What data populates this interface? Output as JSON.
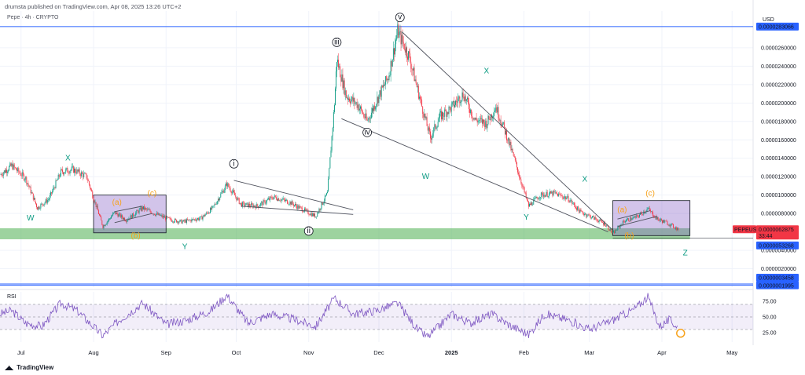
{
  "header": {
    "published": "drumsta published on TradingView.com, Apr 08, 2025 13:26 UTC+2",
    "symbol": "Pepe · 4h · CRYPTO"
  },
  "footer": {
    "brand": "TradingView",
    "logo": "tradingview-logo-icon"
  },
  "colors": {
    "candle_up": "#089981",
    "candle_down": "#f23645",
    "support_zone": "#4caf50",
    "box_fill": "#7e57c2",
    "hline": "#2962ff",
    "rsi_line": "#7e57c2",
    "wave_green": "#089981",
    "wave_orange": "#f7a21b",
    "trendline": "#50535e",
    "price_label": "#2962ff",
    "current_price_label": "#f23645"
  },
  "chart_data": [
    {
      "type": "candlestick",
      "title": "Pepe · 4h · CRYPTO",
      "currency": "USD",
      "y_axis_scale": "linear",
      "ylim": [
        0.0,
        3e-05
      ],
      "y_ticks": [
        {
          "value": 2.6e-05,
          "label": "0.0000260000"
        },
        {
          "value": 2.4e-05,
          "label": "0.0000240000"
        },
        {
          "value": 2.2e-05,
          "label": "0.0000220000"
        },
        {
          "value": 2e-05,
          "label": "0.0000200000"
        },
        {
          "value": 1.8e-05,
          "label": "0.0000180000"
        },
        {
          "value": 1.6e-05,
          "label": "0.0000160000"
        },
        {
          "value": 1.4e-05,
          "label": "0.0000140000"
        },
        {
          "value": 1.2e-05,
          "label": "0.0000120000"
        },
        {
          "value": 1e-05,
          "label": "0.0000100000"
        },
        {
          "value": 8e-06,
          "label": "0.0000080000"
        },
        {
          "value": 4e-06,
          "label": "0.0000040000"
        },
        {
          "value": 2e-06,
          "label": "0.0000020000"
        }
      ],
      "x_ticks": [
        "Jul",
        "Aug",
        "Sep",
        "Oct",
        "Nov",
        "Dec",
        "2025",
        "Feb",
        "Mar",
        "Apr",
        "May"
      ],
      "x_tick_dates": [
        "2024-07-01",
        "2024-08-01",
        "2024-09-01",
        "2024-10-01",
        "2024-11-01",
        "2024-12-01",
        "2025-01-01",
        "2025-02-01",
        "2025-03-01",
        "2025-04-01",
        "2025-05-01"
      ],
      "x_range": [
        "2024-06-22",
        "2025-05-10"
      ],
      "price_path": [
        {
          "date": "2024-06-22",
          "close": 1.22e-05
        },
        {
          "date": "2024-06-27",
          "close": 1.32e-05
        },
        {
          "date": "2024-07-03",
          "close": 1.18e-05
        },
        {
          "date": "2024-07-08",
          "close": 8.6e-06
        },
        {
          "date": "2024-07-13",
          "close": 9.6e-06
        },
        {
          "date": "2024-07-18",
          "close": 1.25e-05
        },
        {
          "date": "2024-07-23",
          "close": 1.28e-05
        },
        {
          "date": "2024-07-29",
          "close": 1.2e-05
        },
        {
          "date": "2024-08-05",
          "close": 6.6e-06
        },
        {
          "date": "2024-08-10",
          "close": 8.1e-06
        },
        {
          "date": "2024-08-15",
          "close": 7.3e-06
        },
        {
          "date": "2024-08-22",
          "close": 8.6e-06
        },
        {
          "date": "2024-08-27",
          "close": 8e-06
        },
        {
          "date": "2024-09-03",
          "close": 7.3e-06
        },
        {
          "date": "2024-09-08",
          "close": 7.1e-06
        },
        {
          "date": "2024-09-16",
          "close": 7.5e-06
        },
        {
          "date": "2024-09-21",
          "close": 8.6e-06
        },
        {
          "date": "2024-09-27",
          "close": 1.12e-05
        },
        {
          "date": "2024-10-03",
          "close": 9e-06
        },
        {
          "date": "2024-10-10",
          "close": 8.8e-06
        },
        {
          "date": "2024-10-17",
          "close": 9.8e-06
        },
        {
          "date": "2024-10-24",
          "close": 9.2e-06
        },
        {
          "date": "2024-10-31",
          "close": 8.2e-06
        },
        {
          "date": "2024-11-04",
          "close": 7.7e-06
        },
        {
          "date": "2024-11-09",
          "close": 1.02e-05
        },
        {
          "date": "2024-11-12",
          "close": 2e-05
        },
        {
          "date": "2024-11-13",
          "close": 2.48e-05
        },
        {
          "date": "2024-11-17",
          "close": 2.08e-05
        },
        {
          "date": "2024-11-22",
          "close": 1.98e-05
        },
        {
          "date": "2024-11-26",
          "close": 1.8e-05
        },
        {
          "date": "2024-12-01",
          "close": 2.08e-05
        },
        {
          "date": "2024-12-05",
          "close": 2.28e-05
        },
        {
          "date": "2024-12-09",
          "close": 2.78e-05
        },
        {
          "date": "2024-12-14",
          "close": 2.5e-05
        },
        {
          "date": "2024-12-19",
          "close": 2e-05
        },
        {
          "date": "2024-12-23",
          "close": 1.62e-05
        },
        {
          "date": "2024-12-27",
          "close": 1.85e-05
        },
        {
          "date": "2025-01-01",
          "close": 1.95e-05
        },
        {
          "date": "2025-01-06",
          "close": 2.1e-05
        },
        {
          "date": "2025-01-11",
          "close": 1.82e-05
        },
        {
          "date": "2025-01-16",
          "close": 1.78e-05
        },
        {
          "date": "2025-01-20",
          "close": 1.96e-05
        },
        {
          "date": "2025-01-25",
          "close": 1.62e-05
        },
        {
          "date": "2025-01-29",
          "close": 1.3e-05
        },
        {
          "date": "2025-02-03",
          "close": 8.8e-06
        },
        {
          "date": "2025-02-08",
          "close": 1e-05
        },
        {
          "date": "2025-02-14",
          "close": 1.02e-05
        },
        {
          "date": "2025-02-20",
          "close": 9.6e-06
        },
        {
          "date": "2025-02-25",
          "close": 8.2e-06
        },
        {
          "date": "2025-03-03",
          "close": 7.5e-06
        },
        {
          "date": "2025-03-08",
          "close": 6.8e-06
        },
        {
          "date": "2025-03-11",
          "close": 5.8e-06
        },
        {
          "date": "2025-03-16",
          "close": 7.2e-06
        },
        {
          "date": "2025-03-21",
          "close": 7.6e-06
        },
        {
          "date": "2025-03-26",
          "close": 8.5e-06
        },
        {
          "date": "2025-03-30",
          "close": 7.4e-06
        },
        {
          "date": "2025-04-03",
          "close": 7e-06
        },
        {
          "date": "2025-04-08",
          "close": 6.2875e-06
        }
      ],
      "horizontal_lines": [
        {
          "value": 2.83066e-05,
          "label": "0.0000283066"
        },
        {
          "value": 3.458e-07,
          "label": "0.0000003458"
        },
        {
          "value": 1.995e-07,
          "label": "0.0000001995"
        }
      ],
      "current_price": {
        "label": "PEPEUSD",
        "value": "0.0000062875",
        "countdown": "33:44"
      },
      "support_level": {
        "value": 5.3268e-06,
        "label": "0.0000053268"
      },
      "support_zone": {
        "low": 5.2e-06,
        "high": 6.4e-06,
        "from": "2024-06-22",
        "to": "2025-04-13"
      },
      "rectangles": [
        {
          "from": "2024-08-01",
          "to": "2024-09-01",
          "low": 5.9e-06,
          "high": 1e-05
        },
        {
          "from": "2025-03-11",
          "to": "2025-04-13",
          "low": 5.6e-06,
          "high": 9.4e-06
        }
      ],
      "trendlines": [
        {
          "p1": {
            "date": "2024-12-11",
            "value": 2.77e-05
          },
          "p2": {
            "date": "2025-03-11",
            "value": 6.2e-06
          }
        },
        {
          "p1": {
            "date": "2024-11-15",
            "value": 1.83e-05
          },
          "p2": {
            "date": "2025-03-09",
            "value": 6e-06
          }
        },
        {
          "p1": {
            "date": "2024-09-30",
            "value": 1.16e-05
          },
          "p2": {
            "date": "2024-11-20",
            "value": 8.4e-06
          }
        },
        {
          "p1": {
            "date": "2024-10-03",
            "value": 8.8e-06
          },
          "p2": {
            "date": "2024-11-20",
            "value": 7.9e-06
          }
        },
        {
          "p1": {
            "date": "2024-08-10",
            "value": 8.2e-06
          },
          "p2": {
            "date": "2024-08-22",
            "value": 8.8e-06
          }
        },
        {
          "p1": {
            "date": "2024-08-10",
            "value": 7e-06
          },
          "p2": {
            "date": "2024-08-26",
            "value": 8e-06
          }
        },
        {
          "p1": {
            "date": "2025-03-13",
            "value": 7.4e-06
          },
          "p2": {
            "date": "2025-03-27",
            "value": 8.3e-06
          }
        },
        {
          "p1": {
            "date": "2025-03-13",
            "value": 6.6e-06
          },
          "p2": {
            "date": "2025-03-30",
            "value": 7.7e-06
          }
        }
      ],
      "wave_labels": [
        {
          "text": "W",
          "date": "2024-07-05",
          "value": 7.5e-06,
          "color": "green",
          "circled": false
        },
        {
          "text": "X",
          "date": "2024-07-21",
          "value": 1.4e-05,
          "color": "green",
          "circled": false
        },
        {
          "text": "(a)",
          "date": "2024-08-11",
          "value": 9.2e-06,
          "color": "orange",
          "circled": false
        },
        {
          "text": "(c)",
          "date": "2024-08-26",
          "value": 1.02e-05,
          "color": "orange",
          "circled": false
        },
        {
          "text": "(b)",
          "date": "2024-08-19",
          "value": 5.6e-06,
          "color": "orange",
          "circled": false
        },
        {
          "text": "Y",
          "date": "2024-09-09",
          "value": 4.4e-06,
          "color": "green",
          "circled": false
        },
        {
          "text": "i",
          "date": "2024-09-30",
          "value": 1.34e-05,
          "color": "gray",
          "circled": true
        },
        {
          "text": "ii",
          "date": "2024-11-01",
          "value": 6.1e-06,
          "color": "gray",
          "circled": true
        },
        {
          "text": "iii",
          "date": "2024-11-13",
          "value": 2.66e-05,
          "color": "gray",
          "circled": true
        },
        {
          "text": "iv",
          "date": "2024-11-26",
          "value": 1.68e-05,
          "color": "gray",
          "circled": true
        },
        {
          "text": "v",
          "date": "2024-12-10",
          "value": 2.93e-05,
          "color": "gray",
          "circled": true
        },
        {
          "text": "W",
          "date": "2024-12-21",
          "value": 1.2e-05,
          "color": "green",
          "circled": false
        },
        {
          "text": "X",
          "date": "2025-01-16",
          "value": 2.35e-05,
          "color": "green",
          "circled": false
        },
        {
          "text": "Y",
          "date": "2025-02-02",
          "value": 7.6e-06,
          "color": "green",
          "circled": false
        },
        {
          "text": "X",
          "date": "2025-02-27",
          "value": 1.17e-05,
          "color": "green",
          "circled": false
        },
        {
          "text": "(a)",
          "date": "2025-03-15",
          "value": 8.4e-06,
          "color": "orange",
          "circled": false
        },
        {
          "text": "(c)",
          "date": "2025-03-27",
          "value": 1.02e-05,
          "color": "orange",
          "circled": false
        },
        {
          "text": "(b)",
          "date": "2025-03-18",
          "value": 5.6e-06,
          "color": "orange",
          "circled": false
        },
        {
          "text": "Z",
          "date": "2025-04-11",
          "value": 3.7e-06,
          "color": "green",
          "circled": false
        }
      ]
    },
    {
      "type": "line",
      "title": "RSI",
      "ylim": [
        10,
        90
      ],
      "y_ticks": [
        {
          "value": 75,
          "label": "75.00"
        },
        {
          "value": 50,
          "label": "50.00"
        },
        {
          "value": 25,
          "label": "25.00"
        }
      ],
      "bands": {
        "upper": 70,
        "middle": 50,
        "lower": 30
      },
      "rsi_path": [
        {
          "date": "2024-06-22",
          "value": 55
        },
        {
          "date": "2024-06-27",
          "value": 60
        },
        {
          "date": "2024-07-03",
          "value": 40
        },
        {
          "date": "2024-07-10",
          "value": 35
        },
        {
          "date": "2024-07-18",
          "value": 72
        },
        {
          "date": "2024-07-25",
          "value": 60
        },
        {
          "date": "2024-08-05",
          "value": 20
        },
        {
          "date": "2024-08-12",
          "value": 45
        },
        {
          "date": "2024-08-22",
          "value": 72
        },
        {
          "date": "2024-09-01",
          "value": 38
        },
        {
          "date": "2024-09-10",
          "value": 45
        },
        {
          "date": "2024-09-20",
          "value": 60
        },
        {
          "date": "2024-09-27",
          "value": 85
        },
        {
          "date": "2024-10-06",
          "value": 40
        },
        {
          "date": "2024-10-16",
          "value": 55
        },
        {
          "date": "2024-10-27",
          "value": 45
        },
        {
          "date": "2024-11-04",
          "value": 35
        },
        {
          "date": "2024-11-12",
          "value": 80
        },
        {
          "date": "2024-11-20",
          "value": 55
        },
        {
          "date": "2024-11-30",
          "value": 60
        },
        {
          "date": "2024-12-09",
          "value": 72
        },
        {
          "date": "2024-12-18",
          "value": 28
        },
        {
          "date": "2024-12-22",
          "value": 18
        },
        {
          "date": "2025-01-01",
          "value": 55
        },
        {
          "date": "2025-01-09",
          "value": 40
        },
        {
          "date": "2025-01-18",
          "value": 55
        },
        {
          "date": "2025-01-27",
          "value": 35
        },
        {
          "date": "2025-02-03",
          "value": 22
        },
        {
          "date": "2025-02-10",
          "value": 55
        },
        {
          "date": "2025-02-20",
          "value": 45
        },
        {
          "date": "2025-03-01",
          "value": 30
        },
        {
          "date": "2025-03-11",
          "value": 45
        },
        {
          "date": "2025-03-20",
          "value": 62
        },
        {
          "date": "2025-03-26",
          "value": 82
        },
        {
          "date": "2025-03-31",
          "value": 35
        },
        {
          "date": "2025-04-04",
          "value": 45
        },
        {
          "date": "2025-04-08",
          "value": 34
        }
      ],
      "highlight_circle": {
        "date": "2025-04-09",
        "value": 24
      }
    }
  ]
}
